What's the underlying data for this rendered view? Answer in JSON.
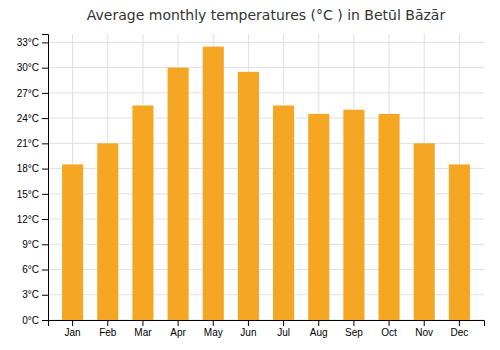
{
  "chart_data": {
    "type": "bar",
    "title": "Average monthly temperatures (°C ) in Betūl Bāzār",
    "categories": [
      "Jan",
      "Feb",
      "Mar",
      "Apr",
      "May",
      "Jun",
      "Jul",
      "Aug",
      "Sep",
      "Oct",
      "Nov",
      "Dec"
    ],
    "values": [
      18.5,
      21.0,
      25.5,
      30.0,
      32.5,
      29.5,
      25.5,
      24.5,
      25.0,
      24.5,
      21.0,
      18.5
    ],
    "color": "#F5A623",
    "ylim": [
      0,
      34
    ],
    "yticks": [
      {
        "value": 0,
        "label": "0°C"
      },
      {
        "value": 3,
        "label": "3°C"
      },
      {
        "value": 6,
        "label": "6°C"
      },
      {
        "value": 9,
        "label": "9°C"
      },
      {
        "value": 12,
        "label": "12°C"
      },
      {
        "value": 15,
        "label": "15°C"
      },
      {
        "value": 18,
        "label": "18°C"
      },
      {
        "value": 21,
        "label": "21°C"
      },
      {
        "value": 24,
        "label": "24°C"
      },
      {
        "value": 27,
        "label": "27°C"
      },
      {
        "value": 30,
        "label": "30°C"
      },
      {
        "value": 33,
        "label": "33°C"
      }
    ],
    "grid": true
  }
}
